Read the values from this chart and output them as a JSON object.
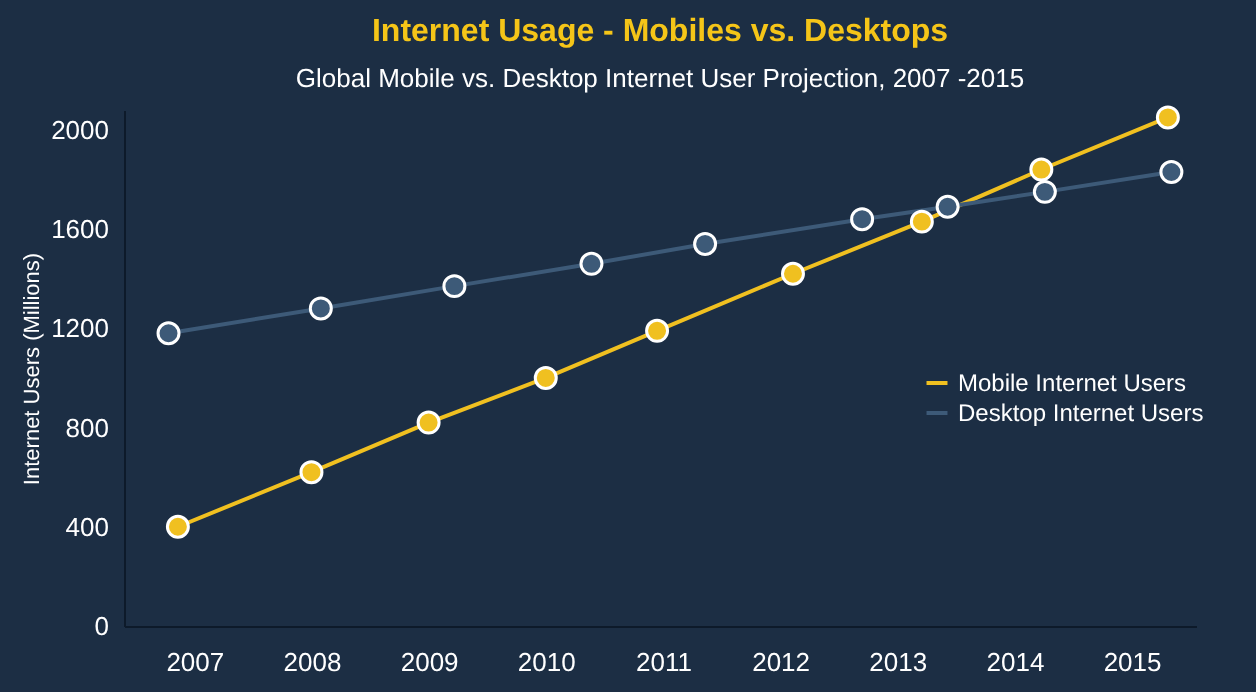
{
  "chart_data": {
    "type": "line",
    "title": "Internet Usage - Mobiles vs. Desktops",
    "subtitle": "Global Mobile vs. Desktop Internet User Projection, 2007 -2015",
    "ylabel": "Internet Users (Millions)",
    "xlim": [
      2006.4,
      2015.55
    ],
    "xticks": [
      2007,
      2008,
      2009,
      2010,
      2011,
      2012,
      2013,
      2014,
      2015
    ],
    "ylim": [
      0,
      2080
    ],
    "yticks": [
      0,
      400,
      800,
      1200,
      1600,
      2000
    ],
    "grid": false,
    "legend": "right",
    "marker": "circle",
    "line_style": "solid",
    "series": [
      {
        "name": "Mobile Internet Users",
        "color": "#f0c020",
        "x": [
          2006.86,
          2008.0,
          2009.0,
          2010.0,
          2010.95,
          2012.11,
          2013.21,
          2014.23,
          2015.31
        ],
        "values": [
          400,
          620,
          820,
          1000,
          1190,
          1420,
          1630,
          1840,
          2050
        ]
      },
      {
        "name": "Desktop Internet Users",
        "color": "#3d5a78",
        "x": [
          2006.78,
          2008.08,
          2009.22,
          2010.39,
          2011.36,
          2012.7,
          2013.43,
          2014.26,
          2015.34
        ],
        "values": [
          1180,
          1280,
          1370,
          1460,
          1540,
          1640,
          1690,
          1750,
          1830
        ]
      }
    ]
  }
}
